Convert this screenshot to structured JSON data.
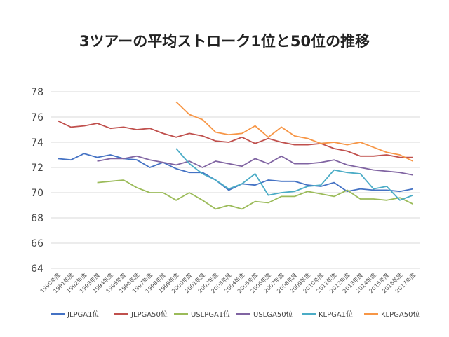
{
  "chart_data": {
    "type": "line",
    "title": "3ツアーの平均ストローク1位と50位の推移",
    "xlabel": "",
    "ylabel": "",
    "ylim": [
      64,
      78
    ],
    "yticks": [
      64,
      66,
      68,
      70,
      72,
      74,
      76,
      78
    ],
    "grid": "horizontal",
    "legend_position": "bottom",
    "categories": [
      "1990年度",
      "1991年度",
      "1992年度",
      "1993年度",
      "1994年度",
      "1995年度",
      "1996年度",
      "1997年度",
      "1998年度",
      "1999年度",
      "2000年度",
      "2001年度",
      "2002年度",
      "2003年度",
      "2004年度",
      "2005年度",
      "2006年度",
      "2007年度",
      "2008年度",
      "2009年度",
      "2010年度",
      "2011年度",
      "2012年度",
      "2013年度",
      "2014年度",
      "2015年度",
      "2016年度",
      "2017年度"
    ],
    "series": [
      {
        "name": "JLPGA1位",
        "color": "#4472c4",
        "values": [
          72.7,
          72.6,
          73.1,
          72.8,
          73.0,
          72.7,
          72.6,
          72.0,
          72.4,
          71.9,
          71.6,
          71.6,
          71.0,
          70.2,
          70.7,
          70.6,
          71.0,
          70.9,
          70.9,
          70.6,
          70.5,
          70.8,
          70.1,
          70.3,
          70.2,
          70.2,
          70.1,
          70.3
        ]
      },
      {
        "name": "JLPGA50位",
        "color": "#c0504d",
        "values": [
          75.7,
          75.2,
          75.3,
          75.5,
          75.1,
          75.2,
          75.0,
          75.1,
          74.7,
          74.4,
          74.7,
          74.5,
          74.1,
          74.0,
          74.4,
          73.9,
          74.3,
          74.0,
          73.8,
          73.8,
          73.9,
          73.5,
          73.3,
          72.9,
          72.9,
          73.0,
          72.8,
          72.8
        ]
      },
      {
        "name": "USLPGA1位",
        "color": "#9bbb59",
        "values": [
          null,
          null,
          null,
          70.8,
          70.9,
          71.0,
          70.4,
          70.0,
          70.0,
          69.4,
          70.0,
          69.4,
          68.7,
          69.0,
          68.7,
          69.3,
          69.2,
          69.7,
          69.7,
          70.1,
          69.9,
          69.7,
          70.2,
          69.5,
          69.5,
          69.4,
          69.6,
          69.1
        ]
      },
      {
        "name": "USLGA50位",
        "color": "#8064a2",
        "values": [
          null,
          null,
          null,
          72.5,
          72.7,
          72.7,
          72.9,
          72.6,
          72.4,
          72.2,
          72.5,
          72.0,
          72.5,
          72.3,
          72.1,
          72.7,
          72.3,
          72.9,
          72.3,
          72.3,
          72.4,
          72.6,
          72.2,
          72.0,
          71.8,
          71.7,
          71.6,
          71.4
        ]
      },
      {
        "name": "KLPGA1位",
        "color": "#4bacc6",
        "values": [
          null,
          null,
          null,
          null,
          null,
          null,
          null,
          null,
          null,
          73.5,
          72.3,
          71.5,
          71.0,
          70.3,
          70.7,
          71.5,
          69.8,
          70.0,
          70.1,
          70.5,
          70.6,
          71.8,
          71.6,
          71.5,
          70.3,
          70.5,
          69.4,
          69.8
        ]
      },
      {
        "name": "KLPGA50位",
        "color": "#f79646",
        "values": [
          null,
          null,
          null,
          null,
          null,
          null,
          null,
          null,
          null,
          77.2,
          76.2,
          75.8,
          74.8,
          74.6,
          74.7,
          75.3,
          74.4,
          75.2,
          74.5,
          74.3,
          73.9,
          74.0,
          73.8,
          74.0,
          73.6,
          73.2,
          73.0,
          72.5
        ]
      }
    ]
  }
}
